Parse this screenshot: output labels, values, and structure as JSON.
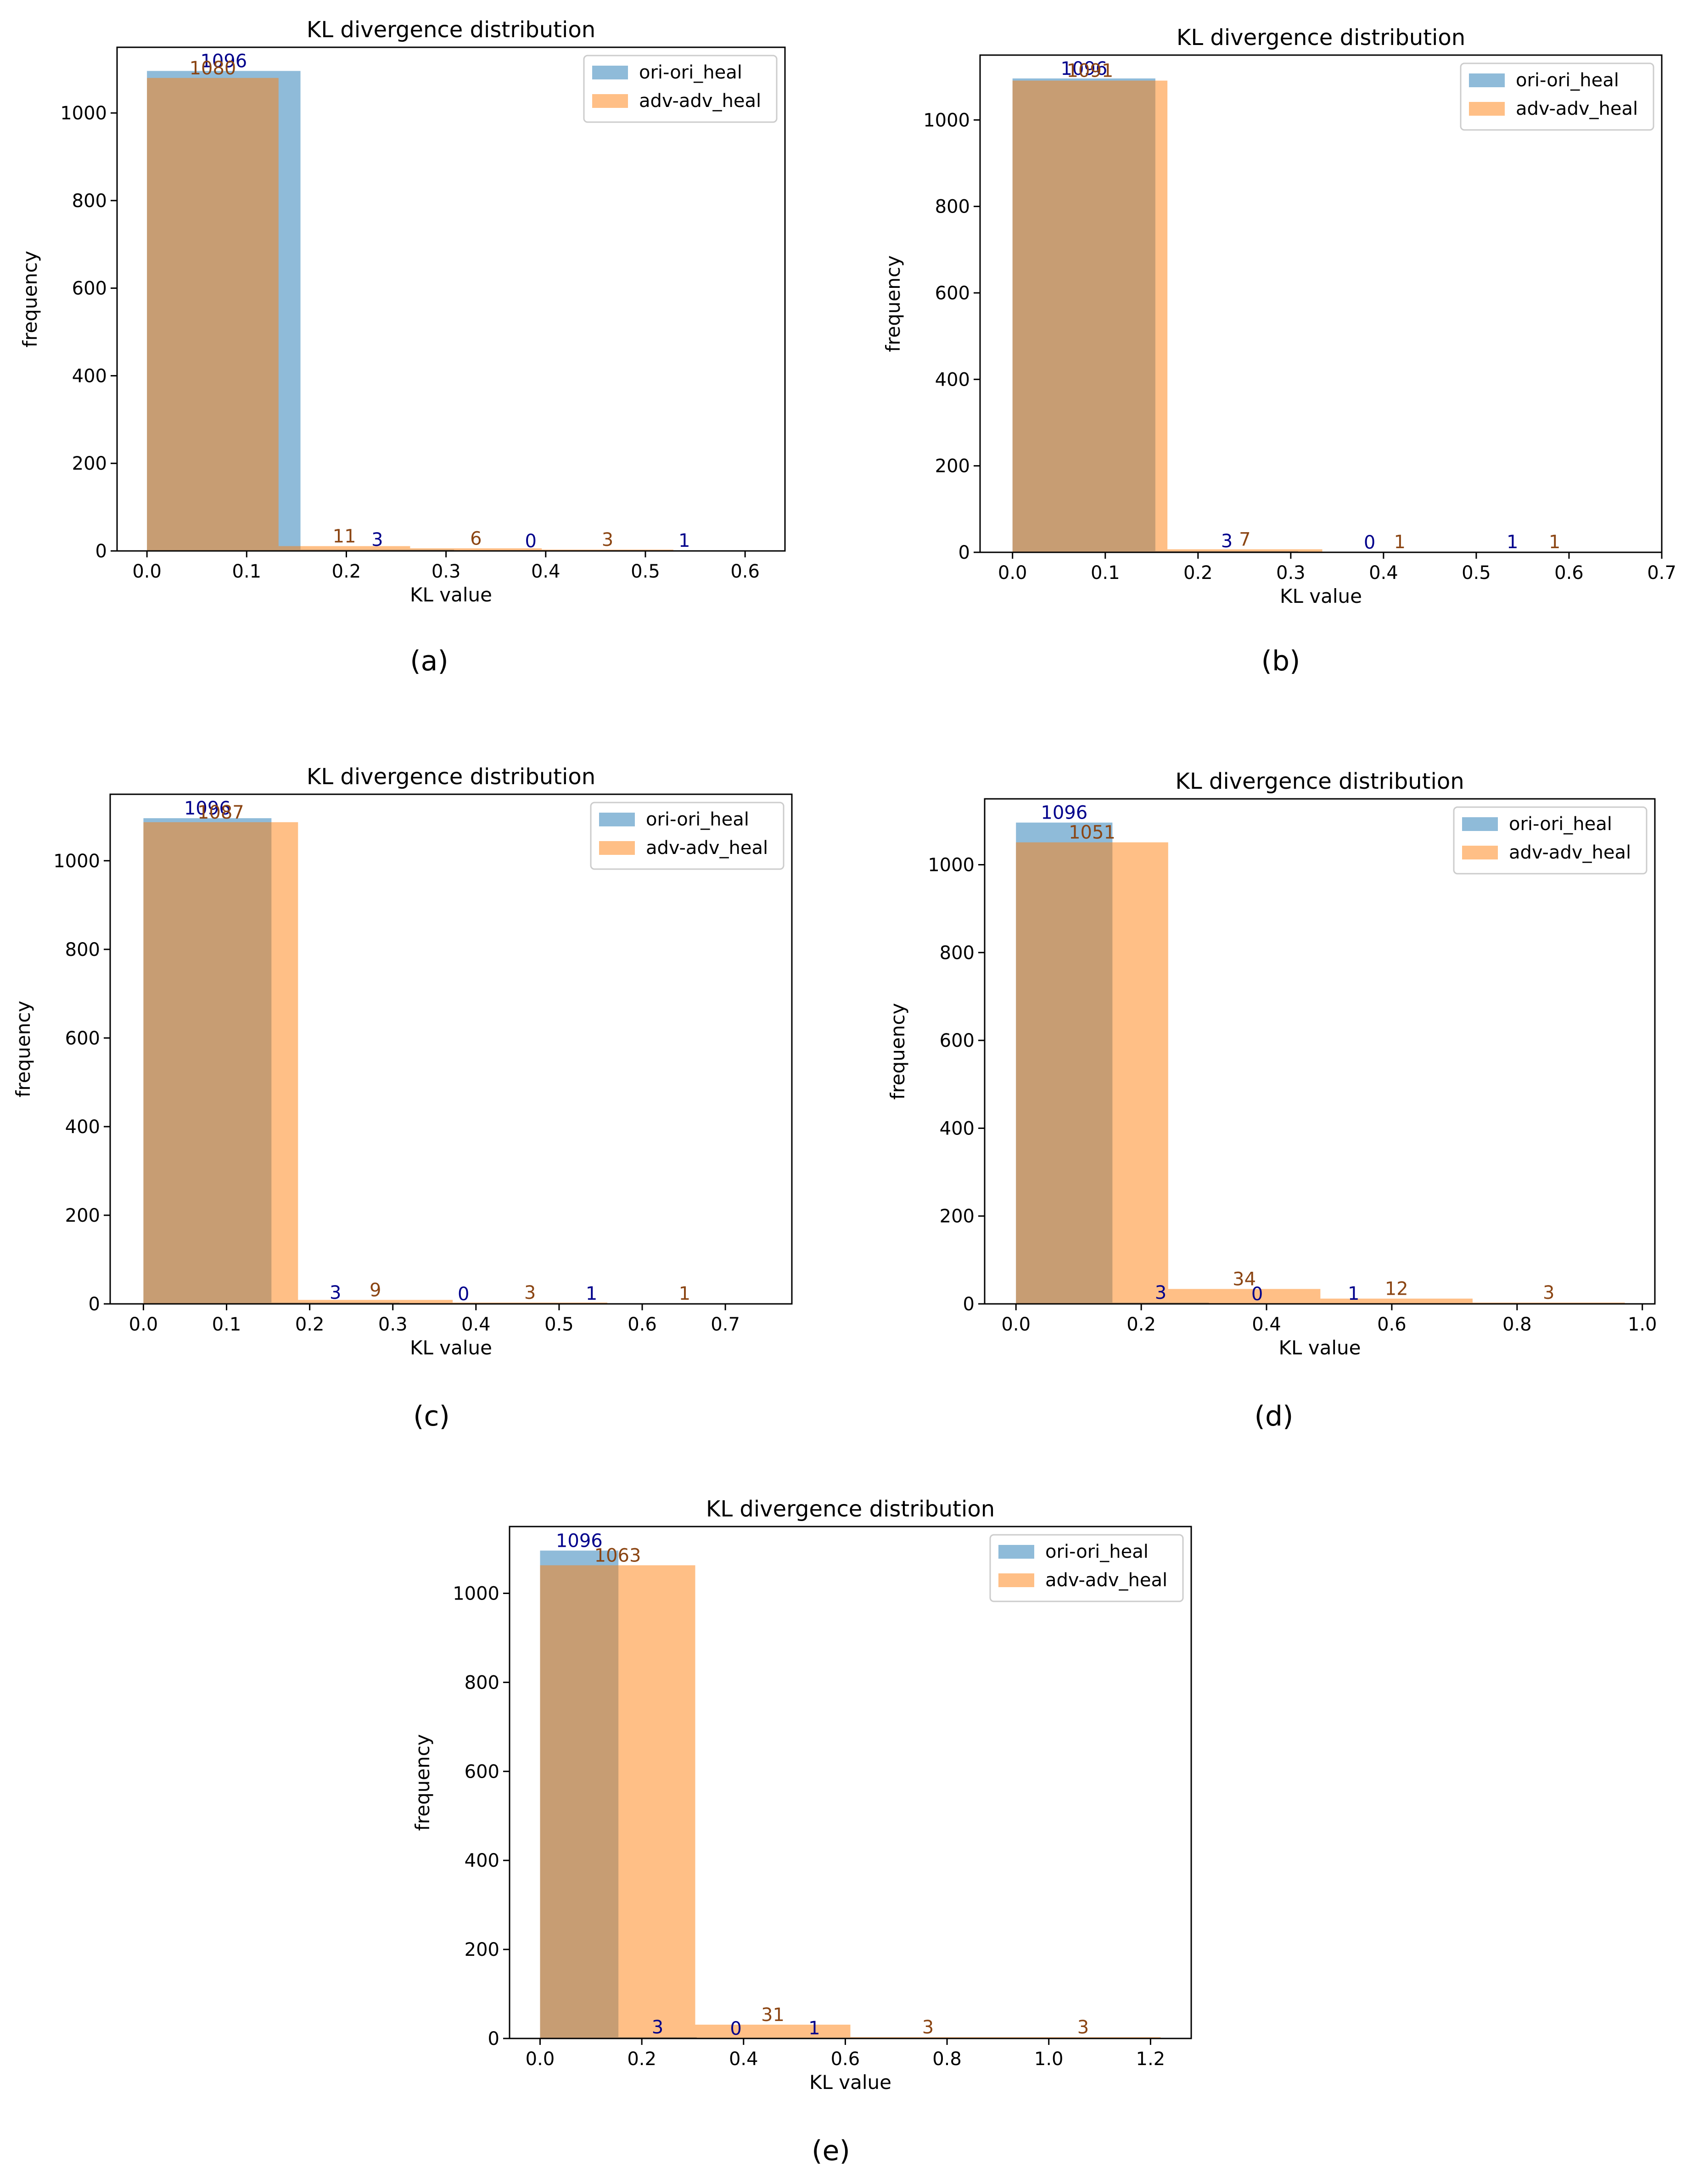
{
  "colors": {
    "series_a": "#1f77b4",
    "series_b": "#ff7f0e",
    "label_a": "#00008b",
    "label_b": "#8b4513",
    "axis": "#000000",
    "legend_border": "#cccccc"
  },
  "chart_data": [
    {
      "panel": "(a)",
      "type": "bar",
      "title": "KL divergence distribution",
      "xlabel": "KL value",
      "ylabel": "frequency",
      "xlim": [
        -0.03,
        0.64
      ],
      "ylim": [
        0,
        1150
      ],
      "xticks": [
        "0.0",
        "0.1",
        "0.2",
        "0.3",
        "0.4",
        "0.5",
        "0.6"
      ],
      "yticks": [
        "0",
        "200",
        "400",
        "600",
        "800",
        "1000"
      ],
      "legend_position": "top-right",
      "series": [
        {
          "name": "ori-ori_heal",
          "edges": [
            0.0,
            0.154,
            0.308,
            0.462,
            0.616
          ],
          "counts": [
            1096,
            3,
            0,
            1
          ],
          "labels": [
            "1096",
            "3",
            "0",
            "1"
          ]
        },
        {
          "name": "adv-adv_heal",
          "edges": [
            0.0,
            0.132,
            0.264,
            0.396,
            0.528
          ],
          "counts": [
            1080,
            11,
            6,
            3
          ],
          "labels": [
            "1080",
            "11",
            "6",
            "3"
          ]
        }
      ]
    },
    {
      "panel": "(b)",
      "type": "bar",
      "title": "KL divergence distribution",
      "xlabel": "KL value",
      "ylabel": "frequency",
      "xlim": [
        -0.035,
        0.7
      ],
      "ylim": [
        0,
        1150
      ],
      "xticks": [
        "0.0",
        "0.1",
        "0.2",
        "0.3",
        "0.4",
        "0.5",
        "0.6",
        "0.7"
      ],
      "yticks": [
        "0",
        "200",
        "400",
        "600",
        "800",
        "1000"
      ],
      "legend_position": "top-right",
      "series": [
        {
          "name": "ori-ori_heal",
          "edges": [
            0.0,
            0.154,
            0.308,
            0.462,
            0.616
          ],
          "counts": [
            1096,
            3,
            0,
            1
          ],
          "labels": [
            "1096",
            "3",
            "0",
            "1"
          ]
        },
        {
          "name": "adv-adv_heal",
          "edges": [
            0.0,
            0.167,
            0.334,
            0.501,
            0.668
          ],
          "counts": [
            1091,
            7,
            1,
            1
          ],
          "labels": [
            "1091",
            "7",
            "1",
            "1"
          ]
        }
      ]
    },
    {
      "panel": "(c)",
      "type": "bar",
      "title": "KL divergence distribution",
      "xlabel": "KL value",
      "ylabel": "frequency",
      "xlim": [
        -0.04,
        0.78
      ],
      "ylim": [
        0,
        1150
      ],
      "xticks": [
        "0.0",
        "0.1",
        "0.2",
        "0.3",
        "0.4",
        "0.5",
        "0.6",
        "0.7"
      ],
      "yticks": [
        "0",
        "200",
        "400",
        "600",
        "800",
        "1000"
      ],
      "legend_position": "top-right",
      "series": [
        {
          "name": "ori-ori_heal",
          "edges": [
            0.0,
            0.154,
            0.308,
            0.462,
            0.616
          ],
          "counts": [
            1096,
            3,
            0,
            1
          ],
          "labels": [
            "1096",
            "3",
            "0",
            "1"
          ]
        },
        {
          "name": "adv-adv_heal",
          "edges": [
            0.0,
            0.186,
            0.372,
            0.558,
            0.744
          ],
          "counts": [
            1087,
            9,
            3,
            1
          ],
          "labels": [
            "1087",
            "9",
            "3",
            "1"
          ]
        }
      ]
    },
    {
      "panel": "(d)",
      "type": "bar",
      "title": "KL divergence distribution",
      "xlabel": "KL value",
      "ylabel": "frequency",
      "xlim": [
        -0.05,
        1.02
      ],
      "ylim": [
        0,
        1150
      ],
      "xticks": [
        "0.0",
        "0.2",
        "0.4",
        "0.6",
        "0.8",
        "1.0"
      ],
      "yticks": [
        "0",
        "200",
        "400",
        "600",
        "800",
        "1000"
      ],
      "legend_position": "top-right",
      "series": [
        {
          "name": "ori-ori_heal",
          "edges": [
            0.0,
            0.154,
            0.308,
            0.462,
            0.616
          ],
          "counts": [
            1096,
            3,
            0,
            1
          ],
          "labels": [
            "1096",
            "3",
            "0",
            "1"
          ]
        },
        {
          "name": "adv-adv_heal",
          "edges": [
            0.0,
            0.243,
            0.486,
            0.729,
            0.972
          ],
          "counts": [
            1051,
            34,
            12,
            3
          ],
          "labels": [
            "1051",
            "34",
            "12",
            "3"
          ]
        }
      ]
    },
    {
      "panel": "(e)",
      "type": "bar",
      "title": "KL divergence distribution",
      "xlabel": "KL value",
      "ylabel": "frequency",
      "xlim": [
        -0.06,
        1.28
      ],
      "ylim": [
        0,
        1150
      ],
      "xticks": [
        "0.0",
        "0.2",
        "0.4",
        "0.6",
        "0.8",
        "1.0",
        "1.2"
      ],
      "yticks": [
        "0",
        "200",
        "400",
        "600",
        "800",
        "1000"
      ],
      "legend_position": "top-right",
      "series": [
        {
          "name": "ori-ori_heal",
          "edges": [
            0.0,
            0.154,
            0.308,
            0.462,
            0.616
          ],
          "counts": [
            1096,
            3,
            0,
            1
          ],
          "labels": [
            "1096",
            "3",
            "0",
            "1"
          ]
        },
        {
          "name": "adv-adv_heal",
          "edges": [
            0.0,
            0.305,
            0.61,
            0.915,
            1.22
          ],
          "counts": [
            1063,
            31,
            3,
            3
          ],
          "labels": [
            "1063",
            "31",
            "3",
            "3"
          ]
        }
      ]
    }
  ]
}
